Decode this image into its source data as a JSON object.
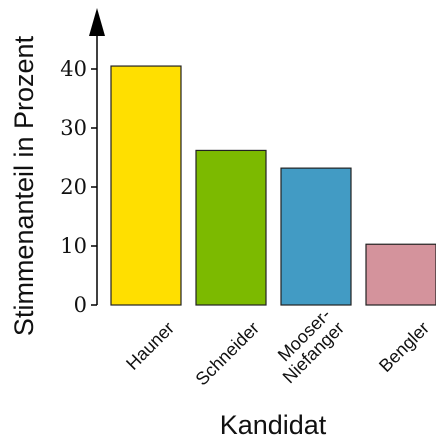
{
  "chart_data": {
    "type": "bar",
    "categories": [
      "Hauner",
      "Schneider",
      "Mooser-Niefanger",
      "Bengler"
    ],
    "category_lines": [
      [
        "Hauner"
      ],
      [
        "Schneider"
      ],
      [
        "Mooser-",
        "Niefanger"
      ],
      [
        "Bengler"
      ]
    ],
    "values": [
      40.5,
      26.2,
      23.2,
      10.3
    ],
    "colors": [
      "#ffdf00",
      "#7cba00",
      "#429bc4",
      "#d4939c"
    ],
    "yticks": [
      0,
      10,
      20,
      30,
      40
    ],
    "ylim": [
      0,
      50
    ],
    "xlabel": "Kandidat",
    "ylabel": "Stimmenanteil in Prozent",
    "grid": false
  }
}
